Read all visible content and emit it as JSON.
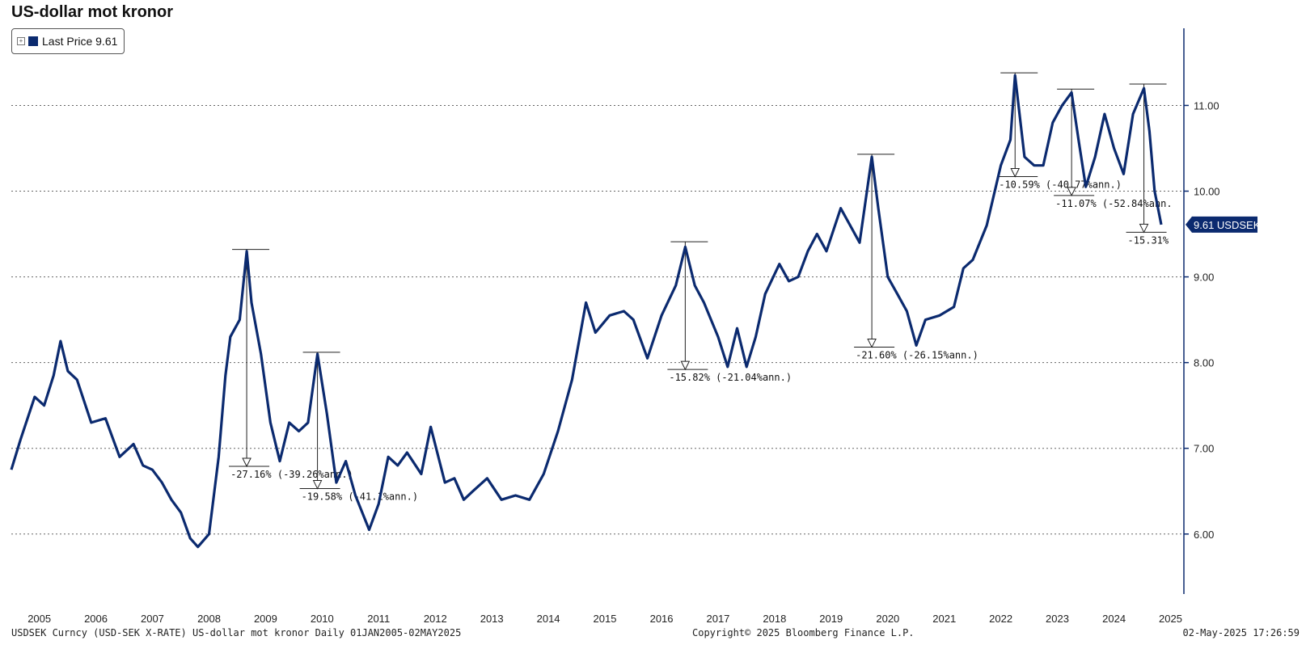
{
  "title": "US-dollar mot kronor",
  "legend": {
    "label": "Last Price 9.61",
    "toggle": "+",
    "color": "#0b2a6f"
  },
  "last_value_tag": "9.61 USDSEK",
  "footer": {
    "left": "USDSEK Curncy (USD-SEK X-RATE) US-dollar mot kronor  Daily 01JAN2005-02MAY2025",
    "middle": "Copyright© 2025 Bloomberg Finance L.P.",
    "right": "02-May-2025 17:26:59"
  },
  "chart_data": {
    "type": "line",
    "title": "US-dollar mot kronor",
    "series": [
      {
        "name": "Last Price",
        "color": "#0b2a6f",
        "points": [
          [
            "2005-01-01",
            6.75
          ],
          [
            "2005-03-01",
            7.1
          ],
          [
            "2005-06-01",
            7.6
          ],
          [
            "2005-08-01",
            7.5
          ],
          [
            "2005-10-01",
            7.85
          ],
          [
            "2005-11-15",
            8.25
          ],
          [
            "2006-01-01",
            7.9
          ],
          [
            "2006-03-01",
            7.8
          ],
          [
            "2006-06-01",
            7.3
          ],
          [
            "2006-09-01",
            7.35
          ],
          [
            "2006-12-01",
            6.9
          ],
          [
            "2007-03-01",
            7.05
          ],
          [
            "2007-05-01",
            6.8
          ],
          [
            "2007-07-01",
            6.75
          ],
          [
            "2007-09-01",
            6.6
          ],
          [
            "2007-11-01",
            6.4
          ],
          [
            "2008-01-01",
            6.25
          ],
          [
            "2008-03-01",
            5.95
          ],
          [
            "2008-04-20",
            5.85
          ],
          [
            "2008-07-01",
            6.0
          ],
          [
            "2008-09-01",
            6.9
          ],
          [
            "2008-10-15",
            7.85
          ],
          [
            "2008-11-15",
            8.3
          ],
          [
            "2009-01-15",
            8.5
          ],
          [
            "2009-03-01",
            9.3
          ],
          [
            "2009-04-01",
            8.7
          ],
          [
            "2009-06-01",
            8.1
          ],
          [
            "2009-08-01",
            7.3
          ],
          [
            "2009-10-01",
            6.85
          ],
          [
            "2009-12-01",
            7.3
          ],
          [
            "2010-02-01",
            7.2
          ],
          [
            "2010-04-01",
            7.3
          ],
          [
            "2010-06-01",
            8.1
          ],
          [
            "2010-08-01",
            7.4
          ],
          [
            "2010-10-01",
            6.6
          ],
          [
            "2010-12-01",
            6.85
          ],
          [
            "2011-02-01",
            6.45
          ],
          [
            "2011-05-01",
            6.05
          ],
          [
            "2011-07-01",
            6.35
          ],
          [
            "2011-09-01",
            6.9
          ],
          [
            "2011-11-01",
            6.8
          ],
          [
            "2012-01-01",
            6.95
          ],
          [
            "2012-04-01",
            6.7
          ],
          [
            "2012-06-01",
            7.25
          ],
          [
            "2012-09-01",
            6.6
          ],
          [
            "2012-11-01",
            6.65
          ],
          [
            "2013-01-01",
            6.4
          ],
          [
            "2013-03-01",
            6.5
          ],
          [
            "2013-06-01",
            6.65
          ],
          [
            "2013-09-01",
            6.4
          ],
          [
            "2013-12-01",
            6.45
          ],
          [
            "2014-03-01",
            6.4
          ],
          [
            "2014-06-01",
            6.7
          ],
          [
            "2014-09-01",
            7.2
          ],
          [
            "2014-12-01",
            7.8
          ],
          [
            "2015-03-01",
            8.7
          ],
          [
            "2015-05-01",
            8.35
          ],
          [
            "2015-08-01",
            8.55
          ],
          [
            "2015-11-01",
            8.6
          ],
          [
            "2016-01-01",
            8.5
          ],
          [
            "2016-04-01",
            8.05
          ],
          [
            "2016-07-01",
            8.55
          ],
          [
            "2016-10-01",
            8.9
          ],
          [
            "2016-12-01",
            9.35
          ],
          [
            "2017-02-01",
            8.9
          ],
          [
            "2017-04-01",
            8.7
          ],
          [
            "2017-07-01",
            8.3
          ],
          [
            "2017-09-01",
            7.95
          ],
          [
            "2017-11-01",
            8.4
          ],
          [
            "2018-01-01",
            7.95
          ],
          [
            "2018-03-01",
            8.3
          ],
          [
            "2018-05-01",
            8.8
          ],
          [
            "2018-08-01",
            9.15
          ],
          [
            "2018-10-01",
            8.95
          ],
          [
            "2018-12-01",
            9.0
          ],
          [
            "2019-02-01",
            9.3
          ],
          [
            "2019-04-01",
            9.5
          ],
          [
            "2019-06-01",
            9.3
          ],
          [
            "2019-09-01",
            9.8
          ],
          [
            "2019-11-01",
            9.6
          ],
          [
            "2020-01-01",
            9.4
          ],
          [
            "2020-03-20",
            10.4
          ],
          [
            "2020-05-01",
            9.8
          ],
          [
            "2020-07-01",
            9.0
          ],
          [
            "2020-09-01",
            8.8
          ],
          [
            "2020-11-01",
            8.6
          ],
          [
            "2021-01-01",
            8.2
          ],
          [
            "2021-03-01",
            8.5
          ],
          [
            "2021-06-01",
            8.55
          ],
          [
            "2021-09-01",
            8.65
          ],
          [
            "2021-11-01",
            9.1
          ],
          [
            "2022-01-01",
            9.2
          ],
          [
            "2022-04-01",
            9.6
          ],
          [
            "2022-07-01",
            10.3
          ],
          [
            "2022-09-01",
            10.6
          ],
          [
            "2022-10-01",
            11.35
          ],
          [
            "2022-12-01",
            10.4
          ],
          [
            "2023-02-01",
            10.3
          ],
          [
            "2023-04-01",
            10.3
          ],
          [
            "2023-06-01",
            10.8
          ],
          [
            "2023-08-01",
            11.0
          ],
          [
            "2023-10-01",
            11.15
          ],
          [
            "2023-11-15",
            10.6
          ],
          [
            "2024-01-01",
            10.05
          ],
          [
            "2024-03-01",
            10.4
          ],
          [
            "2024-05-01",
            10.9
          ],
          [
            "2024-07-01",
            10.5
          ],
          [
            "2024-09-01",
            10.2
          ],
          [
            "2024-11-01",
            10.9
          ],
          [
            "2025-01-10",
            11.2
          ],
          [
            "2025-02-15",
            10.7
          ],
          [
            "2025-03-20",
            10.0
          ],
          [
            "2025-05-02",
            9.61
          ]
        ]
      }
    ],
    "x_tick_labels": [
      "2005",
      "2006",
      "2007",
      "2008",
      "2009",
      "2010",
      "2011",
      "2012",
      "2013",
      "2014",
      "2015",
      "2016",
      "2017",
      "2018",
      "2019",
      "2020",
      "2021",
      "2022",
      "2023",
      "2024",
      "2025"
    ],
    "y_tick_labels": [
      "6.00",
      "7.00",
      "8.00",
      "9.00",
      "10.00",
      "11.00"
    ],
    "ylim": [
      5.3,
      11.9
    ],
    "y_axis_side": "right",
    "grid": "horizontal dotted",
    "legend_position": "top-left",
    "drawdowns": [
      {
        "peak_date": "2009-03-01",
        "peak": 9.32,
        "trough_date": "2009-03-01",
        "trough": 6.79,
        "label": "-27.16% (-39.26%ann.)"
      },
      {
        "peak_date": "2010-06-01",
        "peak": 8.12,
        "trough_date": "2010-06-01",
        "trough": 6.53,
        "label": "-19.58% (-41.1%ann.)"
      },
      {
        "peak_date": "2016-12-01",
        "peak": 9.41,
        "trough_date": "2016-12-01",
        "trough": 7.92,
        "label": "-15.82% (-21.04%ann.)"
      },
      {
        "peak_date": "2020-03-20",
        "peak": 10.43,
        "trough_date": "2020-03-20",
        "trough": 8.18,
        "label": "-21.60% (-26.15%ann.)"
      },
      {
        "peak_date": "2022-10-01",
        "peak": 11.38,
        "trough_date": "2022-10-01",
        "trough": 10.17,
        "label": "-10.59% (-40.77%ann.)"
      },
      {
        "peak_date": "2023-10-01",
        "peak": 11.19,
        "trough_date": "2023-10-01",
        "trough": 9.95,
        "label": "-11.07% (-52.84%ann."
      },
      {
        "peak_date": "2025-01-10",
        "peak": 11.25,
        "trough_date": "2025-01-10",
        "trough": 9.52,
        "label": "-15.31%"
      }
    ]
  }
}
